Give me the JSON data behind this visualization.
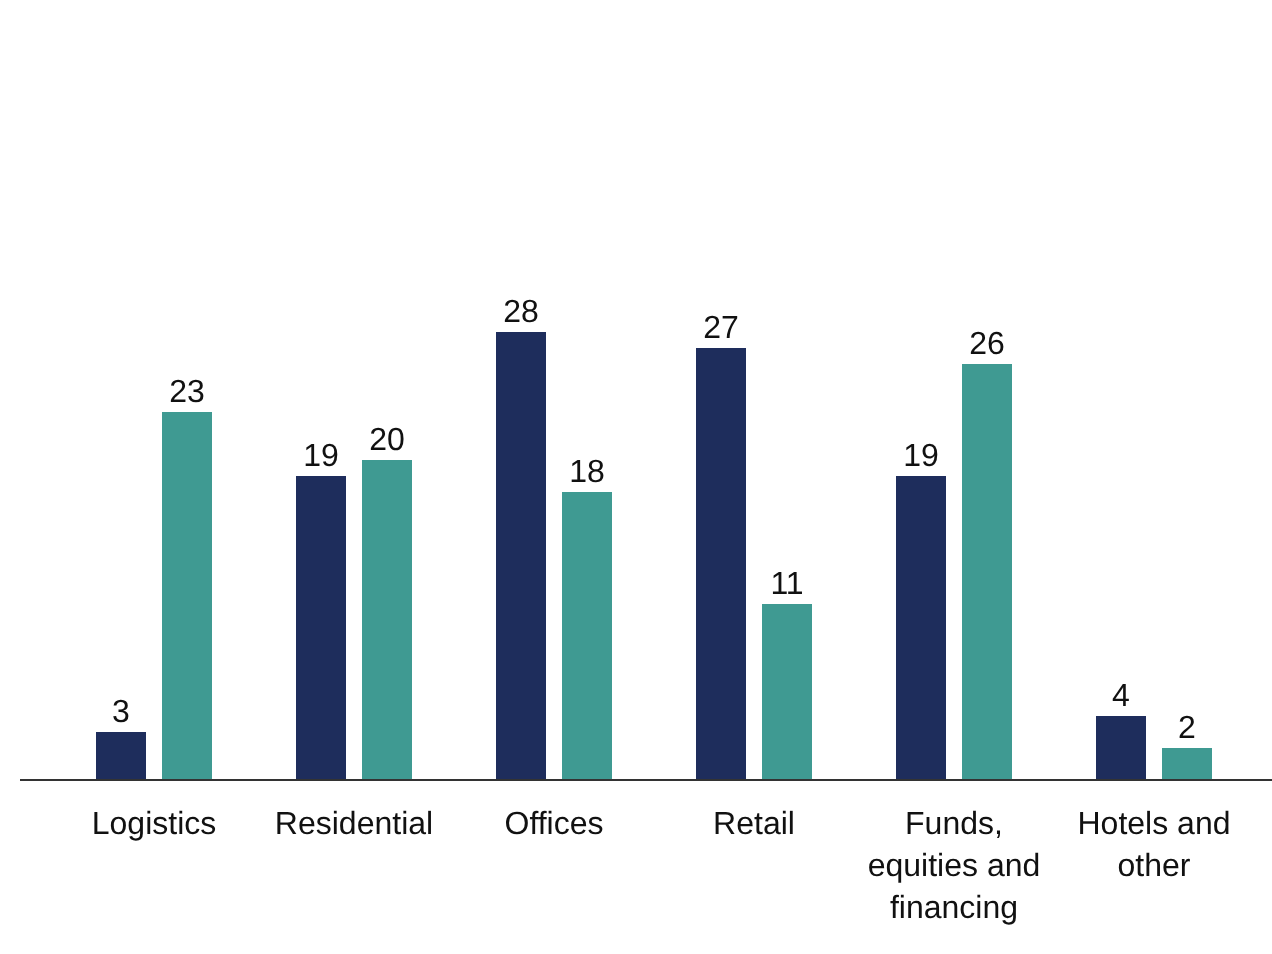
{
  "chart_data": {
    "type": "bar",
    "categories": [
      "Logistics",
      "Residential",
      "Offices",
      "Retail",
      "Funds, equities and financing",
      "Hotels and other"
    ],
    "series": [
      {
        "color": "#1e2d5c",
        "values": [
          3,
          19,
          28,
          27,
          19,
          4
        ]
      },
      {
        "color": "#3f9a92",
        "values": [
          23,
          20,
          18,
          11,
          26,
          2
        ]
      }
    ],
    "data_labels": true
  }
}
